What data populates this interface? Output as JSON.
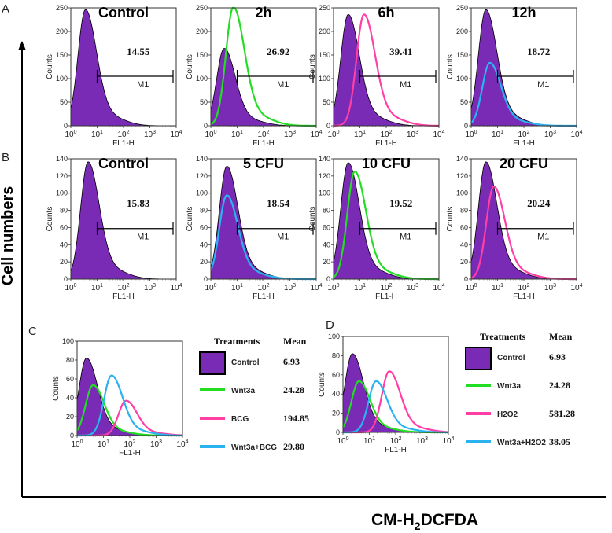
{
  "figure": {
    "y_axis_title": "Cell numbers",
    "x_axis_title_main": "CM-H",
    "x_axis_title_sub": "2",
    "x_axis_title_end": "DCFDA"
  },
  "panel_letters": {
    "A": "A",
    "B": "B",
    "C": "C",
    "D": "D"
  },
  "common_axis": {
    "x_label": "FL1-H",
    "y_label": "Counts",
    "x_ticks": [
      "10",
      "10",
      "10",
      "10",
      "10"
    ],
    "x_tick_exps": [
      "0",
      "1",
      "2",
      "3",
      "4"
    ],
    "gate_label": "M1"
  },
  "colors": {
    "control_fill": "#7a2bb5",
    "green": "#22dd22",
    "pink": "#ff3fa6",
    "blue": "#2ab3f0"
  },
  "chart_data": [
    {
      "type": "area",
      "panel": "A",
      "title": "Control",
      "ylim": [
        0,
        250
      ],
      "yticks": [
        0,
        50,
        100,
        150,
        200,
        250
      ],
      "xlim": [
        0,
        4
      ],
      "x_scale": "log10",
      "gate_percent": "14.55",
      "series": [
        {
          "color": "#7a2bb5",
          "peak_log": 0.55,
          "peak_count": 240
        }
      ]
    },
    {
      "type": "area",
      "panel": "A",
      "title": "2h",
      "ylim": [
        0,
        250
      ],
      "yticks": [
        0,
        50,
        100,
        150,
        200,
        250
      ],
      "xlim": [
        0,
        4
      ],
      "x_scale": "log10",
      "gate_percent": "26.92",
      "series": [
        {
          "color": "#7a2bb5",
          "peak_log": 0.5,
          "peak_count": 160
        },
        {
          "color": "#22dd22",
          "peak_log": 0.85,
          "peak_count": 245
        }
      ]
    },
    {
      "type": "area",
      "panel": "A",
      "title": "6h",
      "ylim": [
        0,
        250
      ],
      "yticks": [
        0,
        50,
        100,
        150,
        200,
        250
      ],
      "xlim": [
        0,
        4
      ],
      "x_scale": "log10",
      "gate_percent": "39.41",
      "series": [
        {
          "color": "#7a2bb5",
          "peak_log": 0.55,
          "peak_count": 230
        },
        {
          "color": "#ff3fa6",
          "peak_log": 1.15,
          "peak_count": 230
        }
      ]
    },
    {
      "type": "area",
      "panel": "A",
      "title": "12h",
      "ylim": [
        0,
        250
      ],
      "yticks": [
        0,
        50,
        100,
        150,
        200,
        250
      ],
      "xlim": [
        0,
        4
      ],
      "x_scale": "log10",
      "gate_percent": "18.72",
      "series": [
        {
          "color": "#7a2bb5",
          "peak_log": 0.55,
          "peak_count": 240
        },
        {
          "color": "#2ab3f0",
          "peak_log": 0.7,
          "peak_count": 130
        }
      ]
    },
    {
      "type": "area",
      "panel": "B",
      "title": "Control",
      "ylim": [
        0,
        140
      ],
      "yticks": [
        0,
        20,
        40,
        60,
        80,
        100,
        120,
        140
      ],
      "xlim": [
        0,
        4
      ],
      "x_scale": "log10",
      "gate_percent": "15.83",
      "series": [
        {
          "color": "#7a2bb5",
          "peak_log": 0.65,
          "peak_count": 133
        }
      ]
    },
    {
      "type": "area",
      "panel": "B",
      "title": "5 CFU",
      "ylim": [
        0,
        140
      ],
      "yticks": [
        0,
        20,
        40,
        60,
        80,
        100,
        120,
        140
      ],
      "xlim": [
        0,
        4
      ],
      "x_scale": "log10",
      "gate_percent": "18.54",
      "series": [
        {
          "color": "#7a2bb5",
          "peak_log": 0.6,
          "peak_count": 128
        },
        {
          "color": "#2ab3f0",
          "peak_log": 0.6,
          "peak_count": 95
        }
      ]
    },
    {
      "type": "area",
      "panel": "B",
      "title": "10 CFU",
      "ylim": [
        0,
        140
      ],
      "yticks": [
        0,
        20,
        40,
        60,
        80,
        100,
        120,
        140
      ],
      "xlim": [
        0,
        4
      ],
      "x_scale": "log10",
      "gate_percent": "19.52",
      "series": [
        {
          "color": "#7a2bb5",
          "peak_log": 0.55,
          "peak_count": 132
        },
        {
          "color": "#22dd22",
          "peak_log": 0.8,
          "peak_count": 122
        }
      ]
    },
    {
      "type": "area",
      "panel": "B",
      "title": "20 CFU",
      "ylim": [
        0,
        140
      ],
      "yticks": [
        0,
        20,
        40,
        60,
        80,
        100,
        120,
        140
      ],
      "xlim": [
        0,
        4
      ],
      "x_scale": "log10",
      "gate_percent": "20.24",
      "series": [
        {
          "color": "#7a2bb5",
          "peak_log": 0.55,
          "peak_count": 133
        },
        {
          "color": "#ff3fa6",
          "peak_log": 0.85,
          "peak_count": 105
        }
      ]
    },
    {
      "type": "area",
      "panel": "C",
      "title": "",
      "ylim": [
        0,
        100
      ],
      "yticks": [
        0,
        20,
        40,
        60,
        80,
        100
      ],
      "xlim": [
        0,
        4
      ],
      "x_scale": "log10",
      "legend_header": {
        "treatment": "Treatments",
        "mean": "Mean"
      },
      "series": [
        {
          "name": "Control",
          "mean": "6.93",
          "color": "#7a2bb5",
          "peak_log": 0.35,
          "peak_count": 80
        },
        {
          "name": "Wnt3a",
          "mean": "24.28",
          "color": "#22dd22",
          "peak_log": 0.6,
          "peak_count": 52
        },
        {
          "name": "BCG",
          "mean": "194.85",
          "color": "#ff3fa6",
          "peak_log": 1.85,
          "peak_count": 36
        },
        {
          "name": "Wnt3a+BCG",
          "mean": "29.80",
          "color": "#2ab3f0",
          "peak_log": 1.3,
          "peak_count": 62
        }
      ]
    },
    {
      "type": "area",
      "panel": "D",
      "title": "",
      "ylim": [
        0,
        100
      ],
      "yticks": [
        0,
        20,
        40,
        60,
        80,
        100
      ],
      "xlim": [
        0,
        4
      ],
      "x_scale": "log10",
      "legend_header": {
        "treatment": "Treatments",
        "mean": "Mean"
      },
      "series": [
        {
          "name": "Control",
          "mean": "6.93",
          "color": "#7a2bb5",
          "peak_log": 0.35,
          "peak_count": 80
        },
        {
          "name": "Wnt3a",
          "mean": "24.28",
          "color": "#22dd22",
          "peak_log": 0.6,
          "peak_count": 52
        },
        {
          "name": "H2O2",
          "mean": "581.28",
          "color": "#ff3fa6",
          "peak_log": 1.75,
          "peak_count": 62
        },
        {
          "name": "Wnt3a+H2O2",
          "mean": "38.05",
          "color": "#2ab3f0",
          "peak_log": 1.25,
          "peak_count": 52
        }
      ]
    }
  ]
}
